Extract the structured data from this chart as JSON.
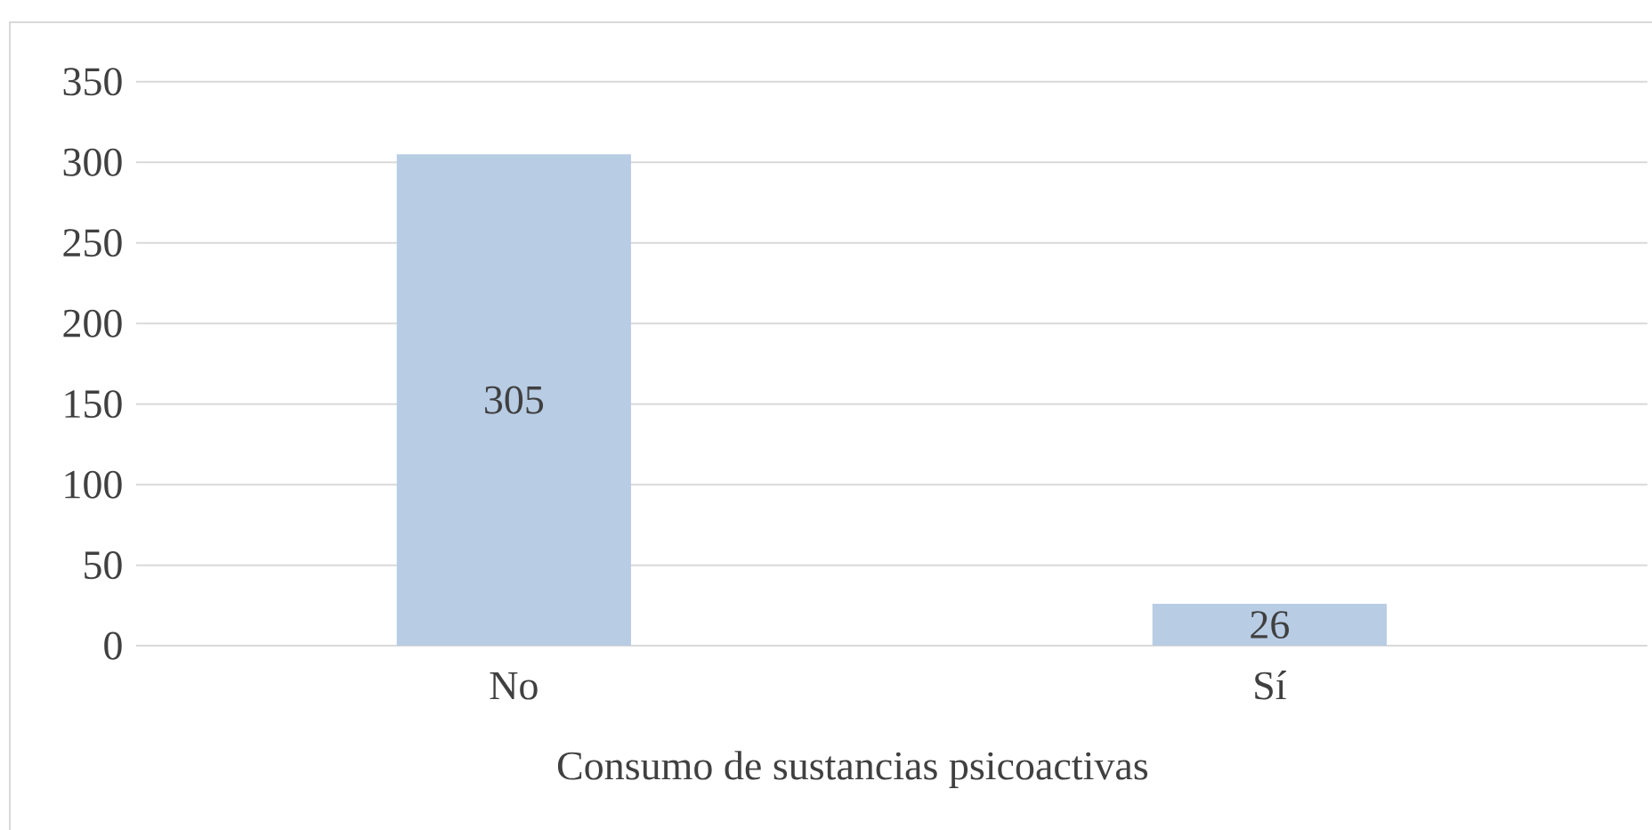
{
  "chart_data": {
    "type": "bar",
    "xlabel": "Consumo de sustancias psicoactivas",
    "categories": [
      "No",
      "Sí"
    ],
    "values": [
      305,
      26
    ],
    "color": "#b8cce4",
    "ylim": [
      0,
      350
    ],
    "yticks": [
      0,
      50,
      100,
      150,
      200,
      250,
      300,
      350
    ],
    "grid": "y",
    "data_labels": true
  }
}
